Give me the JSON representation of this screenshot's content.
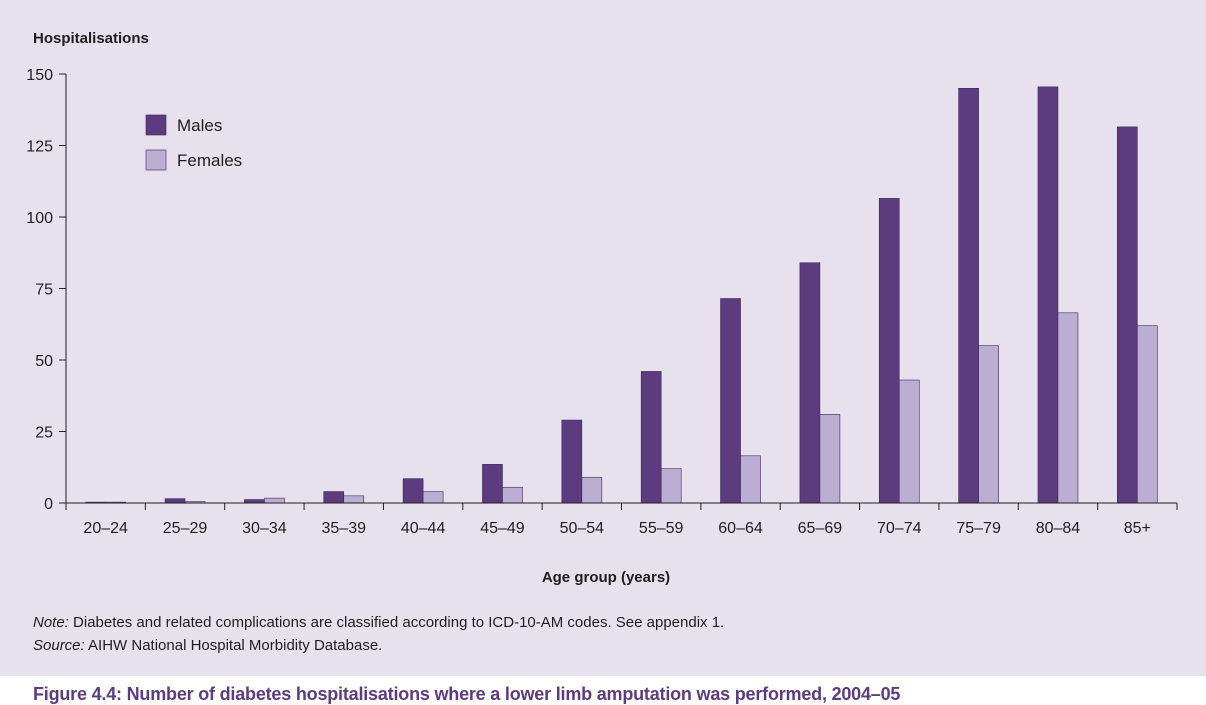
{
  "chart_data": {
    "type": "bar",
    "ylabel": "Hospitalisations",
    "xlabel": "Age group (years)",
    "categories": [
      "20–24",
      "25–29",
      "30–34",
      "35–39",
      "40–44",
      "45–49",
      "50–54",
      "55–59",
      "60–64",
      "65–69",
      "70–74",
      "75–79",
      "80–84",
      "85+"
    ],
    "series": [
      {
        "name": "Males",
        "color": "#5c3b7f",
        "values": [
          0.3,
          1.5,
          1.2,
          4,
          8.5,
          13.5,
          29,
          46,
          71.5,
          84,
          106.5,
          145,
          145.5,
          131.5
        ]
      },
      {
        "name": "Females",
        "color": "#bcaed2",
        "values": [
          0.3,
          0.5,
          1.7,
          2.5,
          4,
          5.5,
          9,
          12,
          16.5,
          31,
          43,
          55,
          66.5,
          62
        ]
      }
    ],
    "ylim": [
      0,
      150
    ],
    "yticks": [
      0,
      25,
      50,
      75,
      100,
      125,
      150
    ],
    "grid": false,
    "legend_placement": "top-left"
  },
  "note": {
    "label": "Note:",
    "text": " Diabetes and related complications are classified according to ICD-10-AM codes. See appendix 1."
  },
  "source": {
    "label": "Source:",
    "text": " AIHW National Hospital Morbidity Database."
  },
  "caption": "Figure 4.4: Number of diabetes hospitalisations where a lower limb amputation was performed, 2004–05"
}
